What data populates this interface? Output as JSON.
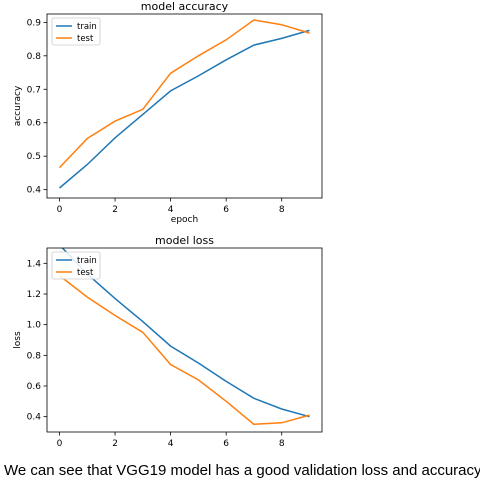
{
  "chart_data": [
    {
      "type": "line",
      "title": "model accuracy",
      "xlabel": "epoch",
      "ylabel": "accuracy",
      "x": [
        0,
        1,
        2,
        3,
        4,
        5,
        6,
        7,
        8,
        9
      ],
      "xticks": [
        0,
        2,
        4,
        6,
        8
      ],
      "yticks": [
        0.4,
        0.5,
        0.6,
        0.7,
        0.8,
        0.9
      ],
      "xlim": [
        -0.45,
        9.45
      ],
      "ylim": [
        0.375,
        0.925
      ],
      "legend_position": "upper-left",
      "grid": false,
      "series": [
        {
          "name": "train",
          "color": "#1f77b4",
          "values": [
            0.405,
            0.475,
            0.555,
            0.625,
            0.695,
            0.74,
            0.788,
            0.832,
            0.852,
            0.876
          ]
        },
        {
          "name": "test",
          "color": "#ff7f0e",
          "values": [
            0.466,
            0.553,
            0.605,
            0.64,
            0.748,
            0.8,
            0.848,
            0.907,
            0.893,
            0.868
          ]
        }
      ]
    },
    {
      "type": "line",
      "title": "model loss",
      "xlabel": "",
      "ylabel": "loss",
      "x": [
        0,
        1,
        2,
        3,
        4,
        5,
        6,
        7,
        8,
        9
      ],
      "xticks": [
        0,
        2,
        4,
        6,
        8
      ],
      "yticks": [
        0.4,
        0.6,
        0.8,
        1.0,
        1.2,
        1.4
      ],
      "xlim": [
        -0.45,
        9.45
      ],
      "ylim": [
        0.3,
        1.5
      ],
      "legend_position": "upper-left",
      "grid": false,
      "series": [
        {
          "name": "train",
          "color": "#1f77b4",
          "values": [
            1.52,
            1.33,
            1.17,
            1.02,
            0.86,
            0.75,
            0.63,
            0.52,
            0.45,
            0.4
          ]
        },
        {
          "name": "test",
          "color": "#ff7f0e",
          "values": [
            1.32,
            1.18,
            1.06,
            0.95,
            0.74,
            0.64,
            0.5,
            0.35,
            0.36,
            0.41
          ]
        }
      ]
    }
  ],
  "caption": "We can see that VGG19 model has a good validation loss and accuracy."
}
